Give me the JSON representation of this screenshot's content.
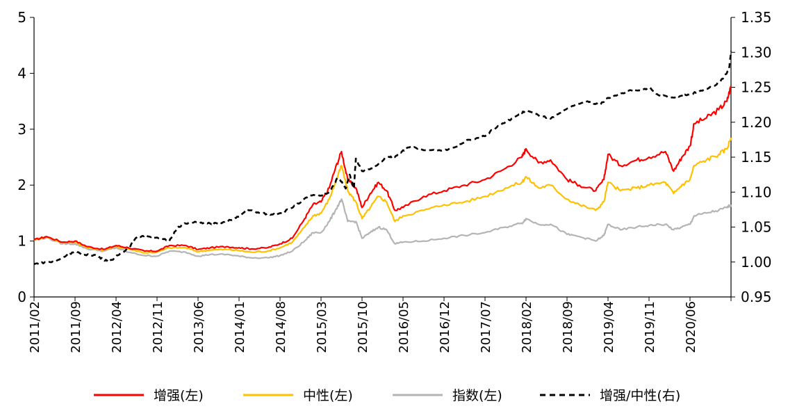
{
  "chart_data": {
    "type": "line",
    "title": "",
    "x_tick_labels": [
      "2011/02",
      "2011/09",
      "2012/04",
      "2012/11",
      "2013/06",
      "2014/01",
      "2014/08",
      "2015/03",
      "2015/10",
      "2016/05",
      "2016/12",
      "2017/07",
      "2018/02",
      "2018/09",
      "2019/04",
      "2019/11",
      "2020/06"
    ],
    "left_axis": {
      "ylim": [
        0,
        5
      ],
      "ticks": [
        "0",
        "1",
        "2",
        "3",
        "4",
        "5"
      ]
    },
    "right_axis": {
      "ylim": [
        0.95,
        1.35
      ],
      "ticks": [
        "0.95",
        "1.00",
        "1.05",
        "1.10",
        "1.15",
        "1.20",
        "1.25",
        "1.30",
        "1.35"
      ]
    },
    "x_range": [
      0,
      17
    ],
    "series": [
      {
        "name": "增强(左)",
        "axis": "left",
        "color": "#ff0000",
        "style": "solid",
        "points": [
          [
            0,
            1.02
          ],
          [
            0.3,
            1.08
          ],
          [
            0.7,
            0.98
          ],
          [
            1.0,
            1.0
          ],
          [
            1.3,
            0.9
          ],
          [
            1.7,
            0.85
          ],
          [
            2.0,
            0.92
          ],
          [
            2.3,
            0.88
          ],
          [
            2.7,
            0.82
          ],
          [
            3.0,
            0.82
          ],
          [
            3.3,
            0.92
          ],
          [
            3.7,
            0.92
          ],
          [
            4.0,
            0.85
          ],
          [
            4.3,
            0.88
          ],
          [
            4.7,
            0.9
          ],
          [
            5.0,
            0.88
          ],
          [
            5.3,
            0.86
          ],
          [
            5.7,
            0.88
          ],
          [
            6.0,
            0.95
          ],
          [
            6.3,
            1.05
          ],
          [
            6.6,
            1.4
          ],
          [
            6.8,
            1.65
          ],
          [
            7.0,
            1.7
          ],
          [
            7.2,
            1.95
          ],
          [
            7.35,
            2.3
          ],
          [
            7.5,
            2.6
          ],
          [
            7.65,
            2.1
          ],
          [
            7.85,
            1.95
          ],
          [
            8.0,
            1.6
          ],
          [
            8.2,
            1.85
          ],
          [
            8.4,
            2.05
          ],
          [
            8.6,
            1.9
          ],
          [
            8.8,
            1.55
          ],
          [
            9.0,
            1.6
          ],
          [
            9.5,
            1.8
          ],
          [
            10.0,
            1.9
          ],
          [
            10.5,
            2.0
          ],
          [
            11.0,
            2.1
          ],
          [
            11.5,
            2.3
          ],
          [
            11.9,
            2.5
          ],
          [
            12.0,
            2.65
          ],
          [
            12.3,
            2.4
          ],
          [
            12.6,
            2.45
          ],
          [
            13.0,
            2.1
          ],
          [
            13.3,
            2.0
          ],
          [
            13.7,
            1.9
          ],
          [
            13.9,
            2.1
          ],
          [
            14.0,
            2.55
          ],
          [
            14.3,
            2.35
          ],
          [
            14.7,
            2.45
          ],
          [
            15.0,
            2.5
          ],
          [
            15.4,
            2.6
          ],
          [
            15.6,
            2.25
          ],
          [
            15.8,
            2.5
          ],
          [
            16.0,
            2.7
          ],
          [
            16.1,
            3.1
          ],
          [
            16.4,
            3.2
          ],
          [
            16.7,
            3.35
          ],
          [
            16.9,
            3.5
          ],
          [
            17.0,
            3.78
          ]
        ]
      },
      {
        "name": "中性(左)",
        "axis": "left",
        "color": "#ffc000",
        "style": "solid",
        "points": [
          [
            0,
            1.02
          ],
          [
            0.3,
            1.08
          ],
          [
            0.7,
            0.97
          ],
          [
            1.0,
            0.98
          ],
          [
            1.3,
            0.88
          ],
          [
            1.7,
            0.84
          ],
          [
            2.0,
            0.9
          ],
          [
            2.3,
            0.86
          ],
          [
            2.7,
            0.79
          ],
          [
            3.0,
            0.8
          ],
          [
            3.3,
            0.88
          ],
          [
            3.7,
            0.88
          ],
          [
            4.0,
            0.81
          ],
          [
            4.3,
            0.84
          ],
          [
            4.7,
            0.85
          ],
          [
            5.0,
            0.83
          ],
          [
            5.3,
            0.8
          ],
          [
            5.7,
            0.82
          ],
          [
            6.0,
            0.88
          ],
          [
            6.3,
            0.98
          ],
          [
            6.6,
            1.25
          ],
          [
            6.8,
            1.45
          ],
          [
            7.0,
            1.5
          ],
          [
            7.2,
            1.75
          ],
          [
            7.35,
            2.05
          ],
          [
            7.5,
            2.35
          ],
          [
            7.65,
            1.9
          ],
          [
            7.85,
            1.7
          ],
          [
            8.0,
            1.4
          ],
          [
            8.2,
            1.6
          ],
          [
            8.4,
            1.8
          ],
          [
            8.6,
            1.7
          ],
          [
            8.8,
            1.35
          ],
          [
            9.0,
            1.45
          ],
          [
            9.5,
            1.55
          ],
          [
            10.0,
            1.65
          ],
          [
            10.5,
            1.7
          ],
          [
            11.0,
            1.8
          ],
          [
            11.5,
            1.95
          ],
          [
            11.9,
            2.05
          ],
          [
            12.0,
            2.15
          ],
          [
            12.3,
            1.95
          ],
          [
            12.6,
            2.0
          ],
          [
            13.0,
            1.75
          ],
          [
            13.3,
            1.65
          ],
          [
            13.7,
            1.55
          ],
          [
            13.9,
            1.7
          ],
          [
            14.0,
            2.05
          ],
          [
            14.3,
            1.9
          ],
          [
            14.7,
            1.95
          ],
          [
            15.0,
            2.0
          ],
          [
            15.4,
            2.05
          ],
          [
            15.6,
            1.85
          ],
          [
            15.8,
            2.0
          ],
          [
            16.0,
            2.1
          ],
          [
            16.1,
            2.35
          ],
          [
            16.4,
            2.45
          ],
          [
            16.7,
            2.55
          ],
          [
            16.9,
            2.65
          ],
          [
            17.0,
            2.85
          ]
        ]
      },
      {
        "name": "指数(左)",
        "axis": "left",
        "color": "#b4b4b4",
        "style": "solid",
        "points": [
          [
            0,
            1.02
          ],
          [
            0.3,
            1.06
          ],
          [
            0.7,
            0.95
          ],
          [
            1.0,
            0.95
          ],
          [
            1.3,
            0.86
          ],
          [
            1.7,
            0.82
          ],
          [
            2.0,
            0.88
          ],
          [
            2.3,
            0.8
          ],
          [
            2.7,
            0.74
          ],
          [
            3.0,
            0.73
          ],
          [
            3.3,
            0.82
          ],
          [
            3.7,
            0.8
          ],
          [
            4.0,
            0.73
          ],
          [
            4.3,
            0.76
          ],
          [
            4.7,
            0.76
          ],
          [
            5.0,
            0.73
          ],
          [
            5.3,
            0.7
          ],
          [
            5.7,
            0.7
          ],
          [
            6.0,
            0.74
          ],
          [
            6.3,
            0.82
          ],
          [
            6.6,
            1.0
          ],
          [
            6.8,
            1.15
          ],
          [
            7.0,
            1.15
          ],
          [
            7.2,
            1.35
          ],
          [
            7.35,
            1.55
          ],
          [
            7.5,
            1.75
          ],
          [
            7.65,
            1.35
          ],
          [
            7.85,
            1.35
          ],
          [
            8.0,
            1.05
          ],
          [
            8.2,
            1.15
          ],
          [
            8.4,
            1.25
          ],
          [
            8.6,
            1.2
          ],
          [
            8.8,
            0.95
          ],
          [
            9.0,
            0.98
          ],
          [
            9.5,
            1.0
          ],
          [
            10.0,
            1.05
          ],
          [
            10.5,
            1.1
          ],
          [
            11.0,
            1.15
          ],
          [
            11.5,
            1.25
          ],
          [
            11.9,
            1.32
          ],
          [
            12.0,
            1.4
          ],
          [
            12.3,
            1.3
          ],
          [
            12.6,
            1.3
          ],
          [
            13.0,
            1.12
          ],
          [
            13.3,
            1.08
          ],
          [
            13.7,
            1.0
          ],
          [
            13.9,
            1.1
          ],
          [
            14.0,
            1.3
          ],
          [
            14.3,
            1.2
          ],
          [
            14.7,
            1.25
          ],
          [
            15.0,
            1.28
          ],
          [
            15.4,
            1.3
          ],
          [
            15.6,
            1.2
          ],
          [
            15.8,
            1.25
          ],
          [
            16.0,
            1.3
          ],
          [
            16.1,
            1.45
          ],
          [
            16.4,
            1.5
          ],
          [
            16.7,
            1.55
          ],
          [
            16.9,
            1.6
          ],
          [
            17.0,
            1.65
          ]
        ]
      },
      {
        "name": "增强/中性(右)",
        "axis": "right",
        "color": "#000000",
        "style": "dashed",
        "points": [
          [
            0,
            0.997
          ],
          [
            0.3,
            1.0
          ],
          [
            0.5,
            1.0
          ],
          [
            0.8,
            1.01
          ],
          [
            1.0,
            1.015
          ],
          [
            1.2,
            1.01
          ],
          [
            1.5,
            1.01
          ],
          [
            1.7,
            1.003
          ],
          [
            1.9,
            1.003
          ],
          [
            2.1,
            1.012
          ],
          [
            2.3,
            1.02
          ],
          [
            2.5,
            1.035
          ],
          [
            2.7,
            1.038
          ],
          [
            3.0,
            1.035
          ],
          [
            3.3,
            1.03
          ],
          [
            3.5,
            1.05
          ],
          [
            3.7,
            1.055
          ],
          [
            4.0,
            1.057
          ],
          [
            4.3,
            1.055
          ],
          [
            4.5,
            1.055
          ],
          [
            4.8,
            1.06
          ],
          [
            5.0,
            1.065
          ],
          [
            5.2,
            1.075
          ],
          [
            5.5,
            1.07
          ],
          [
            5.8,
            1.068
          ],
          [
            6.0,
            1.07
          ],
          [
            6.2,
            1.075
          ],
          [
            6.5,
            1.085
          ],
          [
            6.7,
            1.095
          ],
          [
            7.0,
            1.095
          ],
          [
            7.2,
            1.1
          ],
          [
            7.4,
            1.12
          ],
          [
            7.5,
            1.115
          ],
          [
            7.6,
            1.105
          ],
          [
            7.7,
            1.125
          ],
          [
            7.8,
            1.105
          ],
          [
            7.85,
            1.148
          ],
          [
            8.0,
            1.13
          ],
          [
            8.3,
            1.135
          ],
          [
            8.6,
            1.15
          ],
          [
            8.8,
            1.15
          ],
          [
            9.0,
            1.16
          ],
          [
            9.2,
            1.165
          ],
          [
            9.5,
            1.16
          ],
          [
            10.0,
            1.16
          ],
          [
            10.3,
            1.165
          ],
          [
            10.6,
            1.175
          ],
          [
            11.0,
            1.18
          ],
          [
            11.2,
            1.19
          ],
          [
            11.5,
            1.2
          ],
          [
            11.8,
            1.21
          ],
          [
            12.0,
            1.217
          ],
          [
            12.3,
            1.21
          ],
          [
            12.6,
            1.205
          ],
          [
            12.9,
            1.215
          ],
          [
            13.2,
            1.225
          ],
          [
            13.5,
            1.23
          ],
          [
            13.8,
            1.225
          ],
          [
            14.0,
            1.235
          ],
          [
            14.2,
            1.238
          ],
          [
            14.5,
            1.245
          ],
          [
            14.8,
            1.245
          ],
          [
            15.0,
            1.25
          ],
          [
            15.2,
            1.24
          ],
          [
            15.5,
            1.235
          ],
          [
            15.8,
            1.238
          ],
          [
            16.0,
            1.24
          ],
          [
            16.3,
            1.245
          ],
          [
            16.6,
            1.252
          ],
          [
            16.8,
            1.262
          ],
          [
            16.95,
            1.275
          ],
          [
            17.0,
            1.302
          ]
        ]
      }
    ]
  },
  "legend": [
    {
      "label": "增强(左)",
      "color": "#ff0000",
      "style": "solid"
    },
    {
      "label": "中性(左)",
      "color": "#ffc000",
      "style": "solid"
    },
    {
      "label": "指数(左)",
      "color": "#b4b4b4",
      "style": "solid"
    },
    {
      "label": "增强/中性(右)",
      "color": "#000000",
      "style": "dashed"
    }
  ]
}
